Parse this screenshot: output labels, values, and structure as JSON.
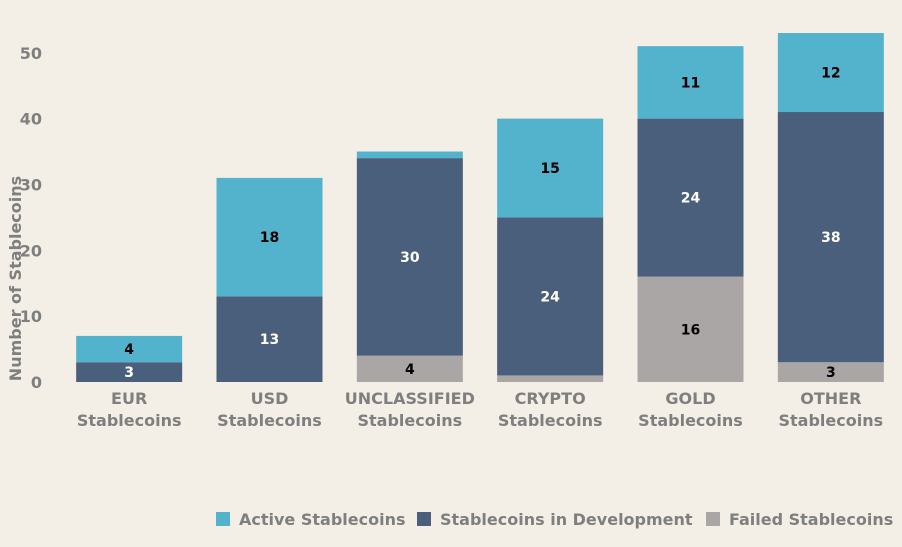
{
  "chart_data": {
    "type": "bar",
    "stacked": true,
    "title": "",
    "xlabel": "",
    "ylabel": "Number of Stablecoins",
    "ylim": [
      0,
      53
    ],
    "yticks": [
      0,
      10,
      20,
      30,
      40,
      50
    ],
    "grid": false,
    "legend_position": "bottom-right",
    "categories": [
      [
        "EUR",
        "Stablecoins"
      ],
      [
        "USD",
        "Stablecoins"
      ],
      [
        "UNCLASSIFIED",
        "Stablecoins"
      ],
      [
        "CRYPTO",
        "Stablecoins"
      ],
      [
        "GOLD",
        "Stablecoins"
      ],
      [
        "OTHER",
        "Stablecoins"
      ]
    ],
    "series": [
      {
        "name": "Failed Stablecoins",
        "color": "#aba6a6",
        "label_color": "#000000",
        "values": [
          0,
          0,
          4,
          1,
          16,
          3
        ],
        "labels": [
          "",
          "",
          "4",
          "",
          "16",
          "3"
        ]
      },
      {
        "name": "Stablecoins in Development",
        "color": "#4a5f7c",
        "label_color": "#ffffff",
        "values": [
          3,
          13,
          30,
          24,
          24,
          38
        ],
        "labels": [
          "3",
          "13",
          "30",
          "24",
          "24",
          "38"
        ]
      },
      {
        "name": "Active Stablecoins",
        "color": "#53b3cd",
        "label_color": "#000000",
        "values": [
          4,
          18,
          1,
          15,
          11,
          12
        ],
        "labels": [
          "4",
          "18",
          "",
          "15",
          "11",
          "12"
        ]
      }
    ],
    "legend_order": [
      2,
      1,
      0
    ]
  }
}
